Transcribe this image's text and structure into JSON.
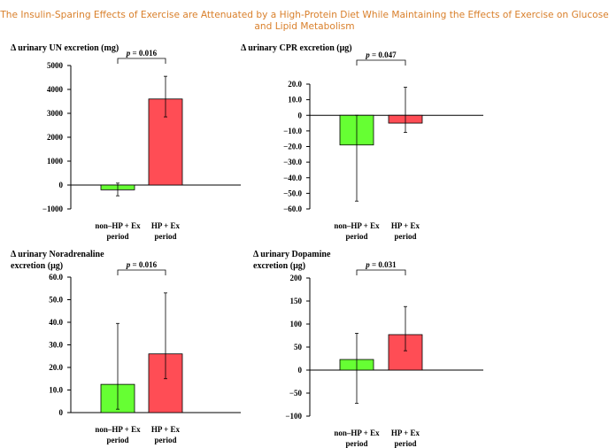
{
  "page": {
    "title_line1": "The Insulin-Sparing Effects of Exercise are Attenuated by a High-Protein Diet While Maintaining the Effects of Exercise on Glucose",
    "title_line2": "and Lipid Metabolism"
  },
  "colors": {
    "green": "#66ff33",
    "red": "#ff4d55",
    "title": "#d97f2a"
  },
  "chart_data": [
    {
      "type": "bar",
      "title_lines": [
        "Δ urinary UN excretion (mg)"
      ],
      "categories": [
        [
          "non–HP + Ex",
          "period"
        ],
        [
          "HP + Ex",
          "period"
        ]
      ],
      "values": [
        -200,
        3600
      ],
      "error_low": [
        -450,
        2850
      ],
      "error_high": [
        80,
        4550
      ],
      "ylim": [
        -1000,
        5000
      ],
      "yticks": [
        -1000,
        0,
        1000,
        2000,
        3000,
        4000,
        5000
      ],
      "ytick_labels": [
        "−1000",
        "0",
        "1000",
        "2000",
        "3000",
        "4000",
        "5000"
      ],
      "p_prefix": "p",
      "p_value": " = 0.016",
      "xlabel": "",
      "ylabel": ""
    },
    {
      "type": "bar",
      "title_lines": [
        "Δ urinary CPR excretion (μg)"
      ],
      "categories": [
        [
          "non–HP + Ex",
          "period"
        ],
        [
          "HP + Ex",
          "period"
        ]
      ],
      "values": [
        -19,
        -5
      ],
      "error_low": [
        -55,
        -11
      ],
      "error_high": [
        0,
        18
      ],
      "ylim": [
        -60,
        20
      ],
      "yticks": [
        -60,
        -50,
        -40,
        -30,
        -20,
        -10,
        0,
        10,
        20
      ],
      "ytick_labels": [
        "−60.0",
        "−50.0",
        "−40.0",
        "−30.0",
        "−20.0",
        "−10.0",
        "0",
        "10.0",
        "20.0"
      ],
      "p_prefix": "p",
      "p_value": " = 0.047",
      "xlabel": "",
      "ylabel": ""
    },
    {
      "type": "bar",
      "title_lines": [
        "Δ urinary Noradrenaline",
        "excretion (μg)"
      ],
      "categories": [
        [
          "non–HP + Ex",
          "period"
        ],
        [
          "HP + Ex",
          "period"
        ]
      ],
      "values": [
        12.5,
        26
      ],
      "error_low": [
        1.5,
        15
      ],
      "error_high": [
        39.5,
        53
      ],
      "ylim": [
        0,
        60
      ],
      "yticks": [
        0,
        10,
        20,
        30,
        40,
        50,
        60
      ],
      "ytick_labels": [
        "0",
        "10.0",
        "20.0",
        "30.0",
        "40.0",
        "50.0",
        "60.0"
      ],
      "p_prefix": "p",
      "p_value": " = 0.016",
      "xlabel": "",
      "ylabel": ""
    },
    {
      "type": "bar",
      "title_lines": [
        "Δ urinary Dopamine",
        "excretion (μg)"
      ],
      "categories": [
        [
          "non–HP + Ex",
          "period"
        ],
        [
          "HP + Ex",
          "period"
        ]
      ],
      "values": [
        23,
        77
      ],
      "error_low": [
        -72,
        42
      ],
      "error_high": [
        80,
        138
      ],
      "ylim": [
        -100,
        200
      ],
      "yticks": [
        -100,
        -50,
        0,
        50,
        100,
        150,
        200
      ],
      "ytick_labels": [
        "−100",
        "−50",
        "0",
        "50",
        "100",
        "150",
        "200"
      ],
      "p_prefix": "p",
      "p_value": " = 0.031",
      "xlabel": "",
      "ylabel": ""
    }
  ]
}
